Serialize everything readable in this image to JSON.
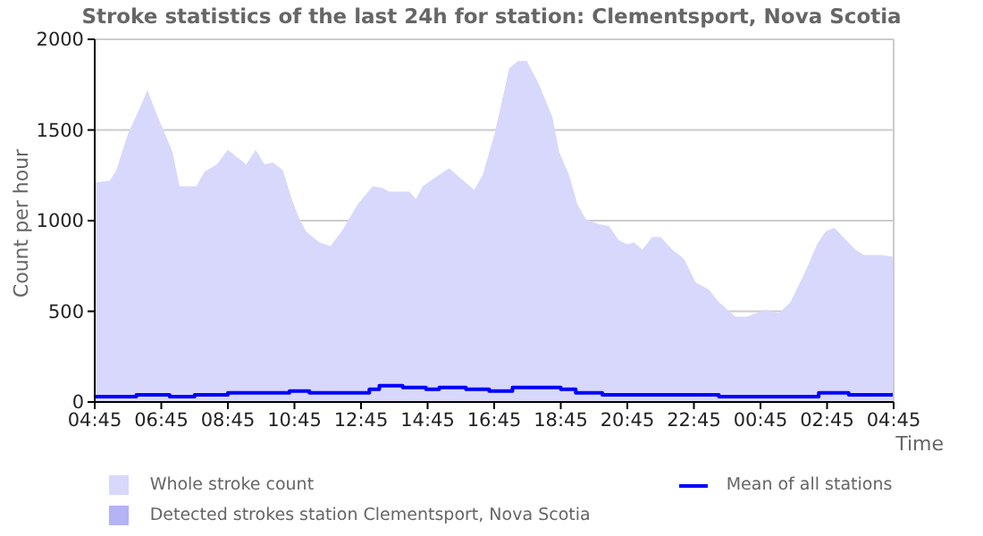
{
  "chart_data": {
    "type": "area",
    "title": "Stroke statistics of the last 24h for station: Clementsport, Nova Scotia",
    "xlabel": "Time",
    "ylabel": "Count per hour",
    "xlim": [
      "--01-01T04:45",
      "--01-02T04:45"
    ],
    "xticks": [
      {
        "value": "--01-01T04:45",
        "label": "04:45"
      },
      {
        "value": "--01-01T06:45",
        "label": "06:45"
      },
      {
        "value": "--01-01T08:45",
        "label": "08:45"
      },
      {
        "value": "--01-01T10:45",
        "label": "10:45"
      },
      {
        "value": "--01-01T12:45",
        "label": "12:45"
      },
      {
        "value": "--01-01T14:45",
        "label": "14:45"
      },
      {
        "value": "--01-01T16:45",
        "label": "16:45"
      },
      {
        "value": "--01-01T18:45",
        "label": "18:45"
      },
      {
        "value": "--01-01T20:45",
        "label": "20:45"
      },
      {
        "value": "--01-01T22:45",
        "label": "22:45"
      },
      {
        "value": "--01-02T00:45",
        "label": "00:45"
      },
      {
        "value": "--01-02T02:45",
        "label": "02:45"
      },
      {
        "value": "--01-02T04:45",
        "label": "04:45"
      }
    ],
    "ylim": [
      0,
      2000
    ],
    "yticks": [
      0,
      500,
      1000,
      1500,
      2000
    ],
    "grid": "y",
    "legend": "bottom",
    "series": [
      {
        "name": "Whole stroke count",
        "color": "#d8d8fc",
        "x": [
          "--01-01T04:45",
          "--01-01T05:12",
          "--01-01T05:24",
          "--01-01T05:45",
          "--01-01T06:06",
          "--01-01T06:20",
          "--01-01T06:35",
          "--01-01T07:05",
          "--01-01T07:18",
          "--01-01T07:48",
          "--01-01T08:03",
          "--01-01T08:25",
          "--01-01T08:45",
          "--01-01T09:18",
          "--01-01T09:35",
          "--01-01T09:51",
          "--01-01T10:06",
          "--01-01T10:24",
          "--01-01T10:40",
          "--01-01T10:54",
          "--01-01T11:06",
          "--01-01T11:30",
          "--01-01T11:50",
          "--01-01T12:12",
          "--01-01T12:39",
          "--01-01T13:06",
          "--01-01T13:24",
          "--01-01T13:36",
          "--01-01T14:12",
          "--01-01T14:24",
          "--01-01T14:36",
          "--01-01T15:00",
          "--01-01T15:24",
          "--01-01T15:42",
          "--01-01T16:09",
          "--01-01T16:24",
          "--01-01T16:46",
          "--01-01T17:12",
          "--01-01T17:28",
          "--01-01T17:44",
          "--01-01T18:06",
          "--01-01T18:30",
          "--01-01T18:42",
          "--01-01T19:00",
          "--01-01T19:15",
          "--01-01T19:30",
          "--01-01T19:54",
          "--01-01T20:12",
          "--01-01T20:30",
          "--01-01T20:45",
          "--01-01T20:57",
          "--01-01T21:12",
          "--01-01T21:30",
          "--01-01T21:45",
          "--01-01T22:06",
          "--01-01T22:27",
          "--01-01T22:48",
          "--01-01T23:12",
          "--01-01T23:30",
          "--01-02T00:00",
          "--01-02T00:21",
          "--01-02T00:54",
          "--01-02T01:18",
          "--01-02T01:39",
          "--01-02T02:06",
          "--01-02T02:27",
          "--01-02T02:42",
          "--01-02T02:58",
          "--01-02T03:14",
          "--01-02T03:36",
          "--01-02T03:52",
          "--01-02T04:24",
          "--01-02T04:45"
        ],
        "values": [
          1210,
          1220,
          1280,
          1480,
          1620,
          1720,
          1600,
          1380,
          1190,
          1190,
          1270,
          1310,
          1390,
          1310,
          1390,
          1310,
          1320,
          1280,
          1120,
          1010,
          940,
          880,
          860,
          950,
          1090,
          1190,
          1180,
          1160,
          1160,
          1120,
          1190,
          1240,
          1290,
          1240,
          1170,
          1250,
          1480,
          1840,
          1880,
          1880,
          1750,
          1570,
          1380,
          1250,
          1090,
          1010,
          980,
          970,
          890,
          870,
          880,
          840,
          910,
          910,
          840,
          790,
          660,
          620,
          550,
          470,
          470,
          510,
          490,
          550,
          720,
          870,
          940,
          960,
          910,
          840,
          810,
          810,
          800
        ]
      },
      {
        "name": "Detected strokes station Clementsport, Nova Scotia",
        "color": "#b3b3f5"
      },
      {
        "name": "Mean of all stations",
        "type": "step",
        "color": "#0000ff",
        "x": [
          "--01-01T04:45",
          "--01-01T06:00",
          "--01-01T07:00",
          "--01-01T07:45",
          "--01-01T08:45",
          "--01-01T10:36",
          "--01-01T11:12",
          "--01-01T11:54",
          "--01-01T12:30",
          "--01-01T13:00",
          "--01-01T13:18",
          "--01-01T14:00",
          "--01-01T14:42",
          "--01-01T15:06",
          "--01-01T15:54",
          "--01-01T16:36",
          "--01-01T17:18",
          "--01-01T17:36",
          "--01-01T18:45",
          "--01-01T19:12",
          "--01-01T20:00",
          "--01-01T22:24",
          "--01-01T23:30",
          "--01-02T02:18",
          "--01-02T02:30",
          "--01-02T03:00",
          "--01-02T03:24",
          "--01-02T04:45"
        ],
        "values": [
          30,
          40,
          30,
          40,
          50,
          60,
          50,
          50,
          50,
          70,
          90,
          80,
          70,
          80,
          70,
          60,
          80,
          80,
          70,
          50,
          40,
          40,
          30,
          30,
          50,
          50,
          40,
          50
        ]
      }
    ]
  }
}
